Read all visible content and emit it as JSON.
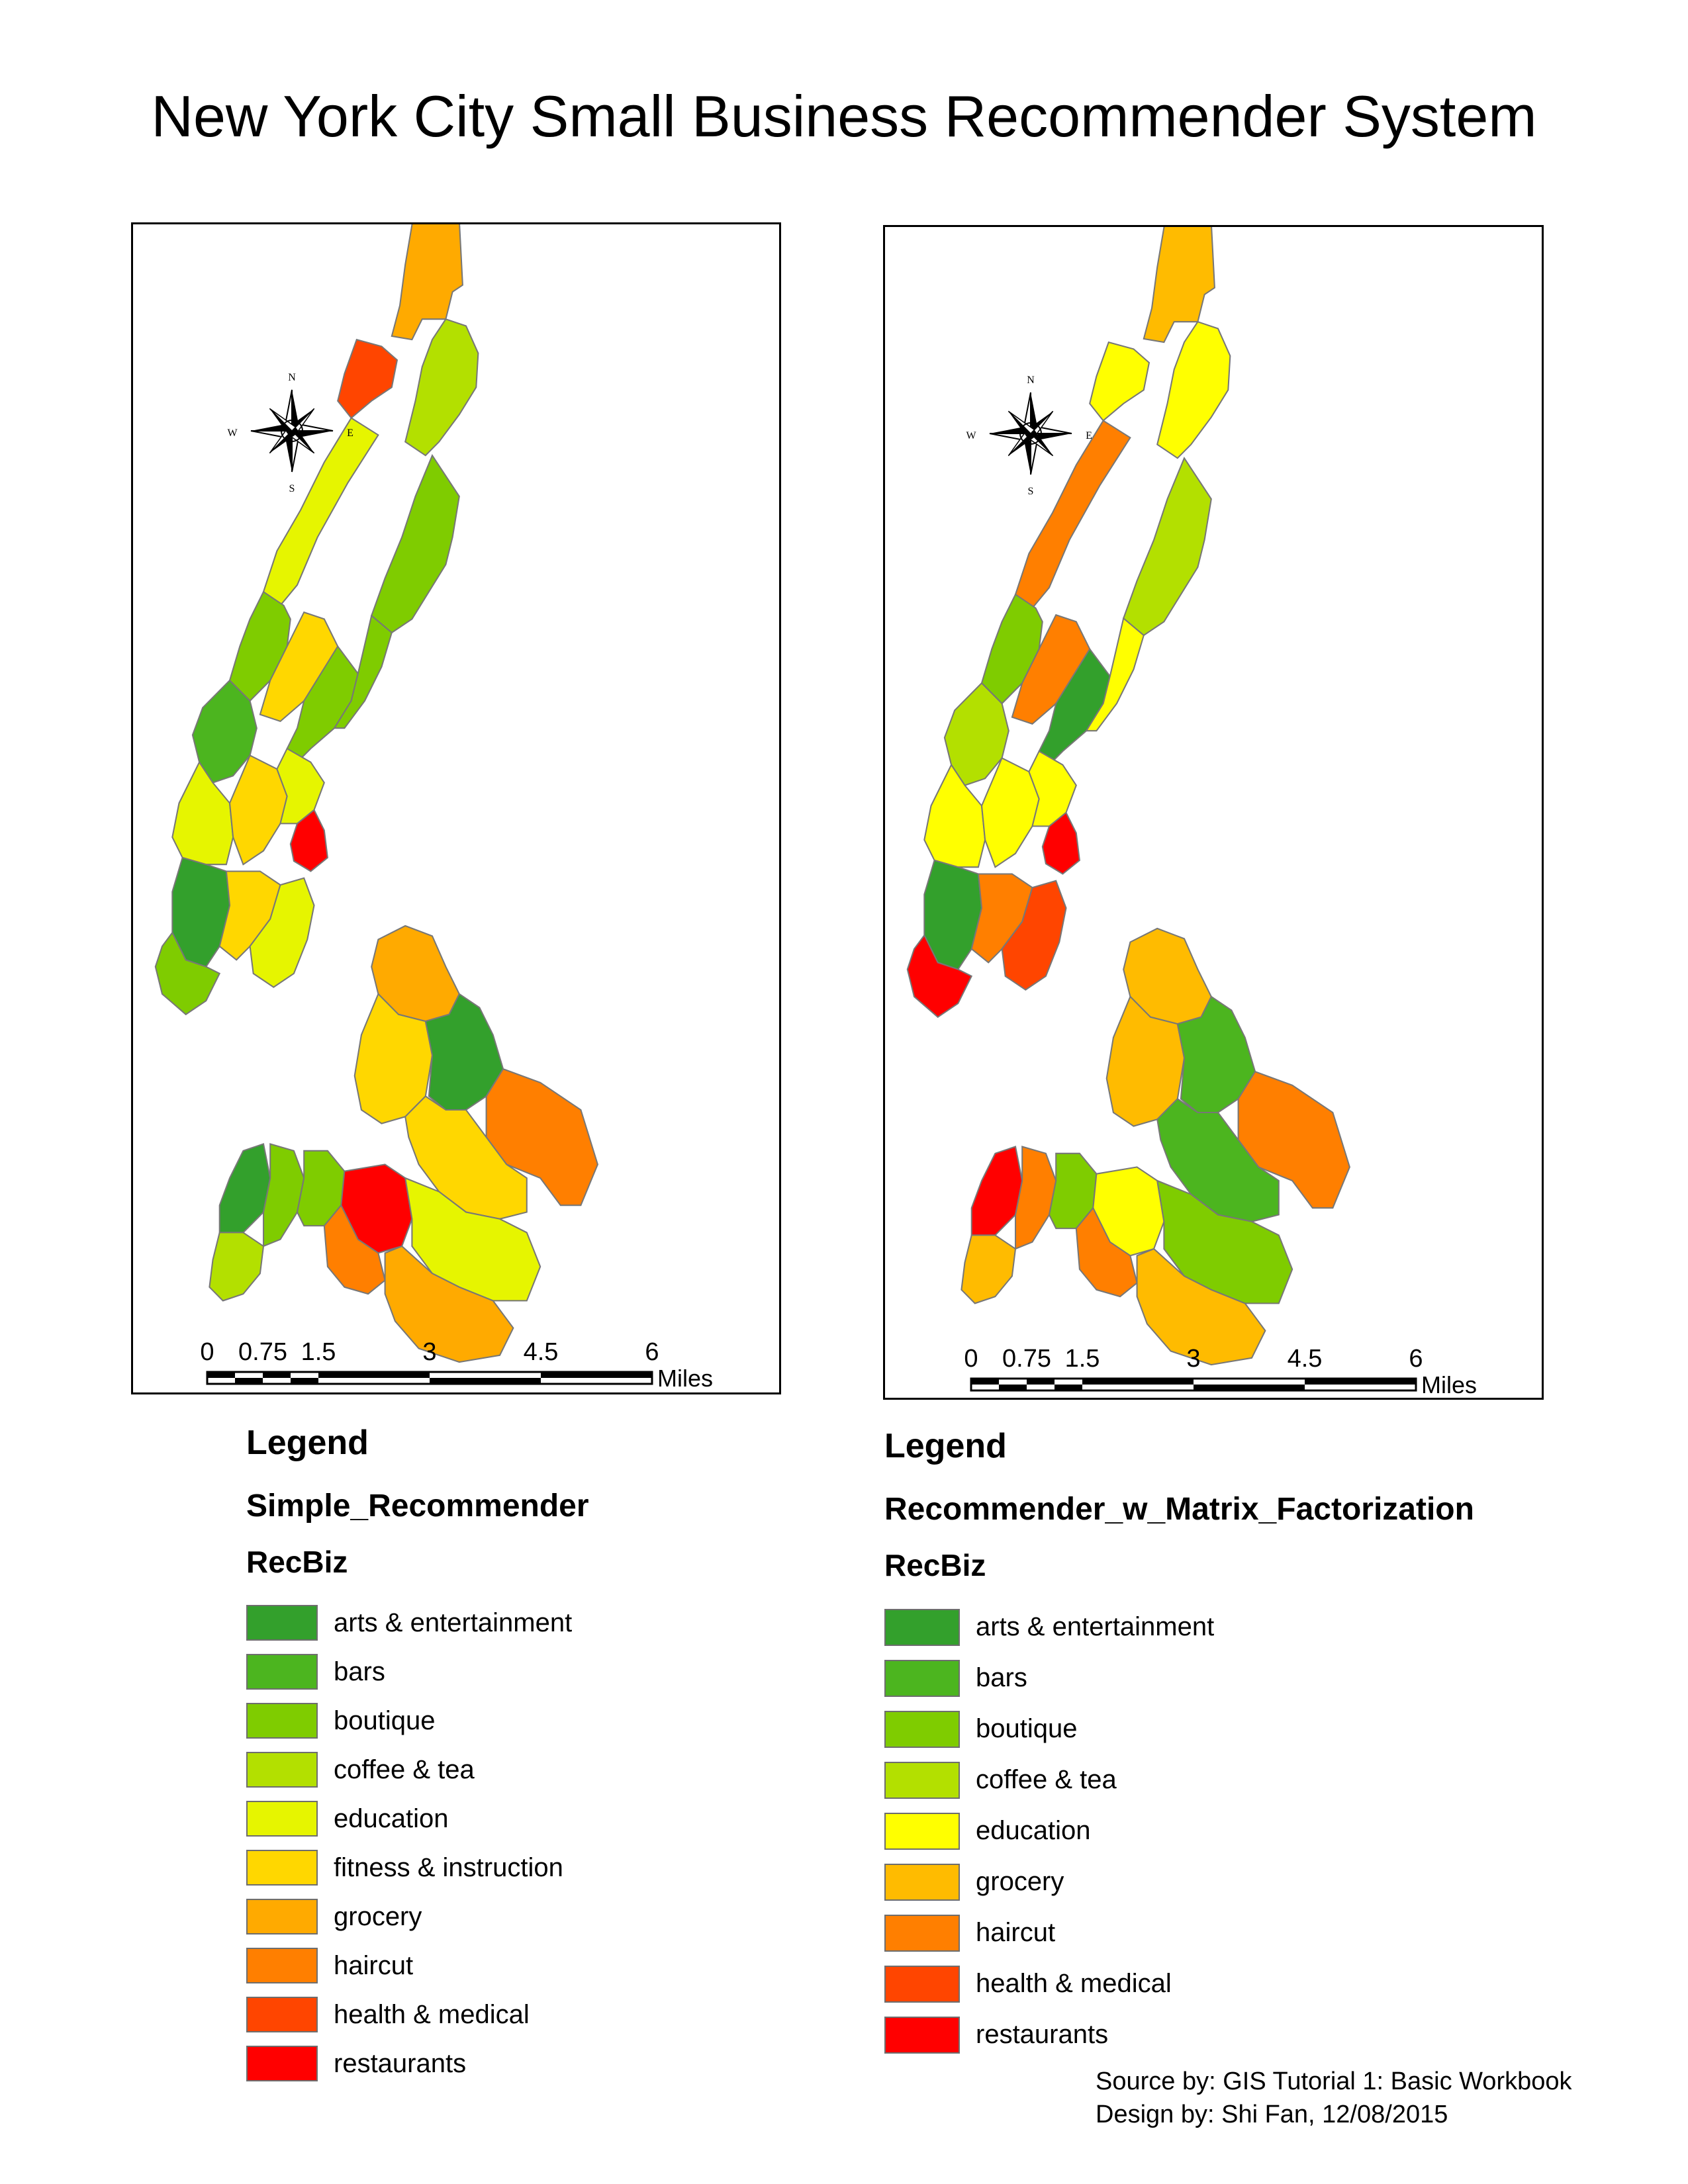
{
  "title": "New York City Small Business Recommender System",
  "colors": {
    "arts & entertainment": "#33a02c",
    "bars": "#4cb51f",
    "boutique": "#7fcc00",
    "coffee & tea": "#b3e000",
    "education": "#e6f500",
    "education_v2": "#ffff00",
    "fitness & instruction": "#ffd700",
    "grocery": "#ffaa00",
    "haircut": "#ff7f00",
    "health & medical": "#ff4500",
    "restaurants": "#ff0000"
  },
  "maps": [
    {
      "compass": {
        "n": "N",
        "s": "S",
        "e": "E",
        "w": "W"
      },
      "scale": {
        "ticks": [
          "0",
          "0.75",
          "1.5",
          "3",
          "4.5",
          "6"
        ],
        "unit": "Miles"
      },
      "legend": {
        "heading": "Legend",
        "layer": "Simple_Recommender",
        "field": "RecBiz",
        "items": [
          {
            "label": "arts & entertainment",
            "color": "#33a02c"
          },
          {
            "label": "bars",
            "color": "#4cb51f"
          },
          {
            "label": "boutique",
            "color": "#7fcc00"
          },
          {
            "label": "coffee & tea",
            "color": "#b3e000"
          },
          {
            "label": "education",
            "color": "#e6f500"
          },
          {
            "label": "fitness & instruction",
            "color": "#ffd700"
          },
          {
            "label": "grocery",
            "color": "#ffaa00"
          },
          {
            "label": "haircut",
            "color": "#ff7f00"
          },
          {
            "label": "health & medical",
            "color": "#ff4500"
          },
          {
            "label": "restaurants",
            "color": "#ff0000"
          }
        ]
      },
      "regions": [
        {
          "category": "coffee & tea"
        },
        {
          "category": "grocery"
        },
        {
          "category": "health & medical"
        },
        {
          "category": "coffee & tea"
        },
        {
          "category": "education"
        },
        {
          "category": "boutique"
        },
        {
          "category": "boutique"
        },
        {
          "category": "bars"
        },
        {
          "category": "fitness & instruction"
        },
        {
          "category": "boutique"
        },
        {
          "category": "boutique"
        },
        {
          "category": "education"
        },
        {
          "category": "fitness & instruction"
        },
        {
          "category": "education"
        },
        {
          "category": "restaurants"
        },
        {
          "category": "arts & entertainment"
        },
        {
          "category": "fitness & instruction"
        },
        {
          "category": "education"
        },
        {
          "category": "boutique"
        },
        {
          "category": "grocery"
        },
        {
          "category": "fitness & instruction"
        },
        {
          "category": "arts & entertainment"
        },
        {
          "category": "haircut"
        },
        {
          "category": "fitness & instruction"
        },
        {
          "category": "arts & entertainment"
        },
        {
          "category": "boutique"
        },
        {
          "category": "coffee & tea"
        },
        {
          "category": "boutique"
        },
        {
          "category": "restaurants"
        },
        {
          "category": "education"
        },
        {
          "category": "haircut"
        },
        {
          "category": "grocery"
        }
      ]
    },
    {
      "compass": {
        "n": "N",
        "s": "S",
        "e": "E",
        "w": "W"
      },
      "scale": {
        "ticks": [
          "0",
          "0.75",
          "1.5",
          "3",
          "4.5",
          "6"
        ],
        "unit": "Miles"
      },
      "legend": {
        "heading": "Legend",
        "layer": "Recommender_w_Matrix_Factorization",
        "field": "RecBiz",
        "items": [
          {
            "label": "arts & entertainment",
            "color": "#33a02c"
          },
          {
            "label": "bars",
            "color": "#4cb51f"
          },
          {
            "label": "boutique",
            "color": "#7fcc00"
          },
          {
            "label": "coffee & tea",
            "color": "#b3e000"
          },
          {
            "label": "education",
            "color": "#ffff00"
          },
          {
            "label": "grocery",
            "color": "#ffbb00"
          },
          {
            "label": "haircut",
            "color": "#ff7f00"
          },
          {
            "label": "health & medical",
            "color": "#ff4500"
          },
          {
            "label": "restaurants",
            "color": "#ff0000"
          }
        ]
      },
      "regions": [
        {
          "category": "coffee & tea"
        },
        {
          "category": "grocery"
        },
        {
          "category": "education"
        },
        {
          "category": "education"
        },
        {
          "category": "haircut"
        },
        {
          "category": "coffee & tea"
        },
        {
          "category": "boutique"
        },
        {
          "category": "coffee & tea"
        },
        {
          "category": "haircut"
        },
        {
          "category": "arts & entertainment"
        },
        {
          "category": "education"
        },
        {
          "category": "education"
        },
        {
          "category": "education"
        },
        {
          "category": "education"
        },
        {
          "category": "restaurants"
        },
        {
          "category": "arts & entertainment"
        },
        {
          "category": "haircut"
        },
        {
          "category": "health & medical"
        },
        {
          "category": "restaurants"
        },
        {
          "category": "grocery"
        },
        {
          "category": "grocery"
        },
        {
          "category": "bars"
        },
        {
          "category": "haircut"
        },
        {
          "category": "bars"
        },
        {
          "category": "restaurants"
        },
        {
          "category": "haircut"
        },
        {
          "category": "grocery"
        },
        {
          "category": "boutique"
        },
        {
          "category": "education"
        },
        {
          "category": "boutique"
        },
        {
          "category": "haircut"
        },
        {
          "category": "grocery"
        }
      ]
    }
  ],
  "credits": {
    "source": "Source by: GIS Tutorial 1: Basic Workbook",
    "design": "Design by: Shi Fan, 12/08/2015"
  }
}
